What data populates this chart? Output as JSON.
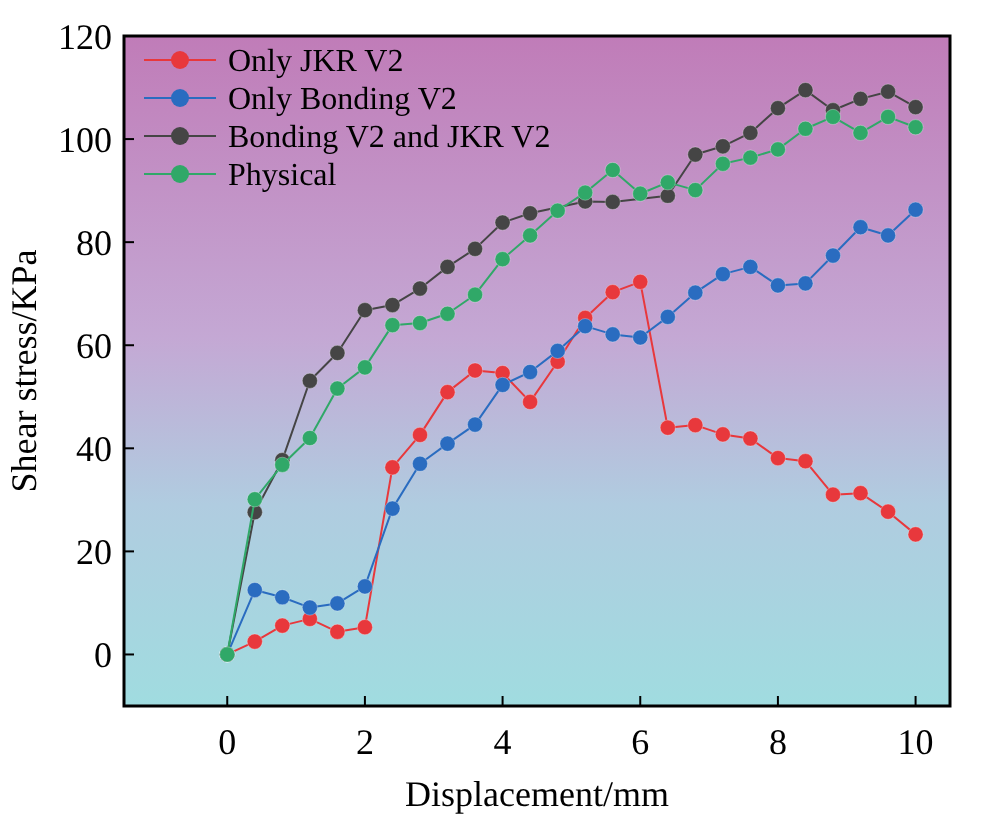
{
  "chart_data": {
    "type": "line",
    "xlabel": "Displacement/mm",
    "ylabel": "Shear stress/KPa",
    "x": [
      0,
      0.4,
      0.8,
      1.2,
      1.6,
      2.0,
      2.4,
      2.8,
      3.2,
      3.6,
      4.0,
      4.4,
      4.8,
      5.2,
      5.6,
      6.0,
      6.4,
      6.8,
      7.2,
      7.6,
      8.0,
      8.4,
      8.8,
      9.2,
      9.6,
      10.0
    ],
    "series": [
      {
        "name": "Only JKR V2",
        "color": "#e8383c",
        "values": [
          0,
          2.5,
          5.6,
          6.9,
          4.4,
          5.3,
          36.3,
          42.6,
          50.9,
          55.1,
          54.6,
          49,
          56.8,
          65.3,
          70.3,
          72.3,
          44,
          44.5,
          42.7,
          41.9,
          38.1,
          37.5,
          31,
          31.3,
          27.7,
          23.3
        ]
      },
      {
        "name": "Only Bonding V2",
        "color": "#2a6cc0",
        "values": [
          0,
          12.5,
          11.1,
          9.1,
          9.9,
          13.2,
          28.3,
          37,
          40.9,
          44.6,
          52.3,
          54.8,
          58.9,
          63.7,
          62.1,
          61.5,
          65.5,
          70.2,
          73.8,
          75.2,
          71.6,
          72,
          77.4,
          82.9,
          81.3,
          86.3
        ]
      },
      {
        "name": "Bonding V2 and JKR V2",
        "color": "#454545",
        "values": [
          0,
          27.6,
          37.7,
          53.1,
          58.5,
          66.8,
          67.8,
          71,
          75.2,
          78.7,
          83.8,
          85.6,
          null,
          87.9,
          87.8,
          null,
          89,
          97,
          98.6,
          101.2,
          106,
          109.5,
          105.6,
          107.8,
          109.2,
          106.2
        ]
      },
      {
        "name": "Physical",
        "color": "#30a868",
        "values": [
          0,
          30.1,
          36.8,
          42,
          51.6,
          55.7,
          63.9,
          64.3,
          66.1,
          69.8,
          76.7,
          81.3,
          86.1,
          89.6,
          94,
          89.4,
          91.6,
          90.1,
          95.2,
          96.4,
          98,
          102,
          104.3,
          101.2,
          104.3,
          102.3
        ]
      }
    ],
    "xlim": [
      -1.5,
      10.5
    ],
    "xticks": [
      0,
      2,
      4,
      6,
      8,
      10
    ],
    "ylim": [
      -10,
      120
    ],
    "yticks": [
      0,
      20,
      40,
      60,
      80,
      100,
      120
    ],
    "legend": "top left",
    "marker": "circle",
    "line_style": "solid",
    "grid": false
  }
}
